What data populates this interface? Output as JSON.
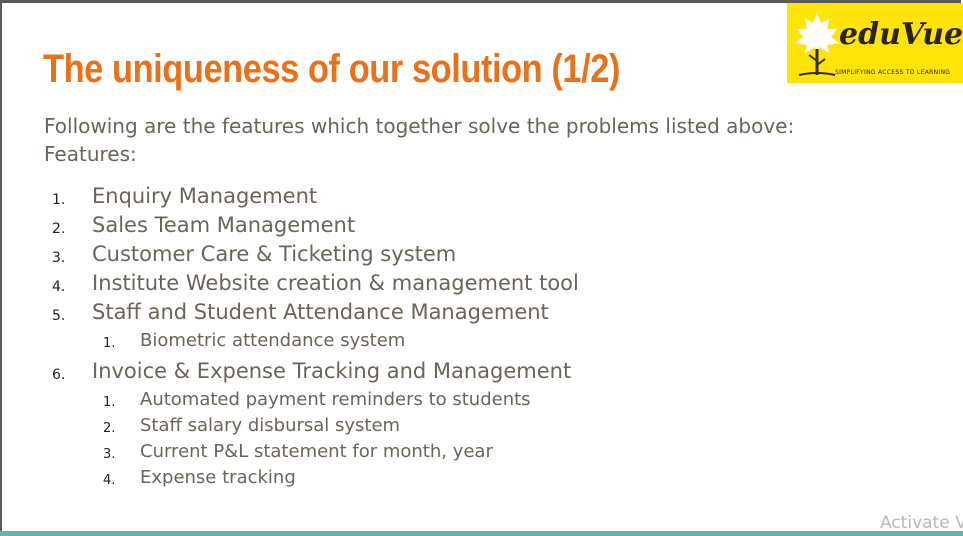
{
  "slide": {
    "title": "The uniqueness of our solution (1/2)",
    "intro_line1": "Following are the features which together solve the problems listed above:",
    "intro_line2": "Features:",
    "features": [
      {
        "num": "1.",
        "label": "Enquiry Management"
      },
      {
        "num": "2.",
        "label": "Sales Team Management"
      },
      {
        "num": "3.",
        "label": "Customer Care & Ticketing system"
      },
      {
        "num": "4.",
        "label": "Institute Website creation & management tool"
      },
      {
        "num": "5.",
        "label": "Staff and Student Attendance Management",
        "sub": [
          {
            "num": "1.",
            "label": "Biometric attendance system"
          }
        ]
      },
      {
        "num": "6.",
        "label": "Invoice & Expense Tracking and Management",
        "sub": [
          {
            "num": "1.",
            "label": "Automated payment reminders to students"
          },
          {
            "num": "2.",
            "label": "Staff salary disbursal system"
          },
          {
            "num": "3.",
            "label": "Current P&L statement for month, year"
          },
          {
            "num": "4.",
            "label": "Expense tracking"
          }
        ]
      }
    ]
  },
  "logo": {
    "brand": "eduVue",
    "tagline": "SIMPLIFYING ACCESS TO LEARNING",
    "icon": "maple-leaf-tree-icon",
    "background": "#fee409"
  },
  "watermark": "Activate V",
  "colors": {
    "title": "#e8711a",
    "body": "#6b6459",
    "accent_bar": "#63b3ae"
  }
}
